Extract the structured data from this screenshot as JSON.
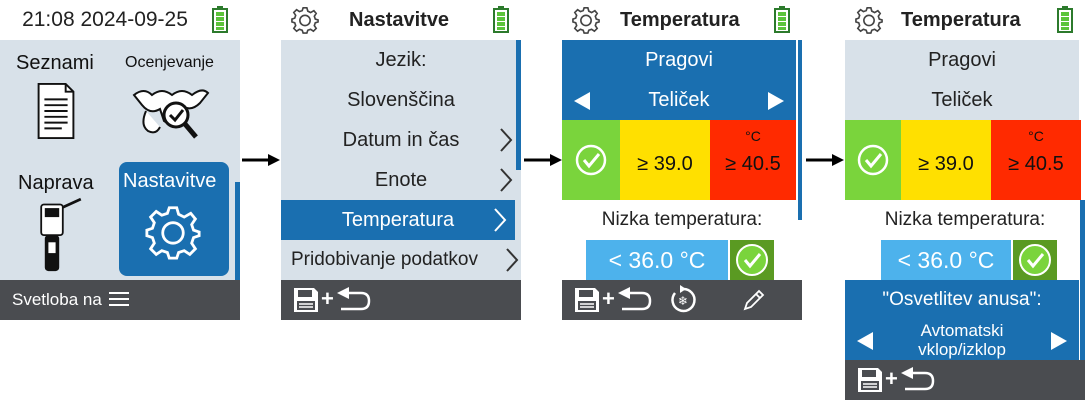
{
  "screen1": {
    "time": "21:08",
    "date": "2024-09-25",
    "tiles": {
      "lists": "Seznami",
      "scoring": "Ocenjevanje",
      "device": "Naprava",
      "settings": "Nastavitve"
    },
    "bottom_label": "Svetloba na"
  },
  "screen2": {
    "title": "Nastavitve",
    "items": [
      {
        "label": "Jezik:",
        "chevron": false
      },
      {
        "label": "Slovenščina",
        "chevron": false
      },
      {
        "label": "Datum in čas",
        "chevron": true
      },
      {
        "label": "Enote",
        "chevron": true
      },
      {
        "label": "Temperatura",
        "chevron": true,
        "selected": true
      },
      {
        "label": "Pridobivanje podatkov",
        "chevron": true
      }
    ]
  },
  "screen3": {
    "title": "Temperatura",
    "thresholds_label": "Pragovi",
    "animal": "Teliček",
    "unit": "°C",
    "fever_threshold": "≥ 39.0",
    "high_threshold": "≥ 40.5",
    "low_label": "Nizka temperatura:",
    "low_value": "< 36.0 °C"
  },
  "screen4": {
    "title": "Temperatura",
    "thresholds_label": "Pragovi",
    "animal": "Teliček",
    "unit": "°C",
    "fever_threshold": "≥ 39.0",
    "high_threshold": "≥ 40.5",
    "low_label": "Nizka temperatura:",
    "low_value": "< 36.0 °C",
    "lighting_label": "\"Osvetlitev anusa\":",
    "lighting_value_line1": "Avtomatski",
    "lighting_value_line2": "vklop/izklop"
  },
  "colors": {
    "accent_blue": "#1a6fb0",
    "green": "#7ad43c",
    "yellow": "#ffe000",
    "red": "#ff2a00",
    "light_blue": "#4db2ec",
    "dark_bar": "#4a4c50"
  },
  "icons": [
    "battery-icon",
    "gear-icon",
    "document-icon",
    "cow-heads-icon",
    "thermometer-device-icon",
    "menu-icon",
    "save-icon",
    "back-icon",
    "reset-icon",
    "pencil-icon",
    "chevron-right-icon",
    "check-icon",
    "arrow-right-icon"
  ]
}
